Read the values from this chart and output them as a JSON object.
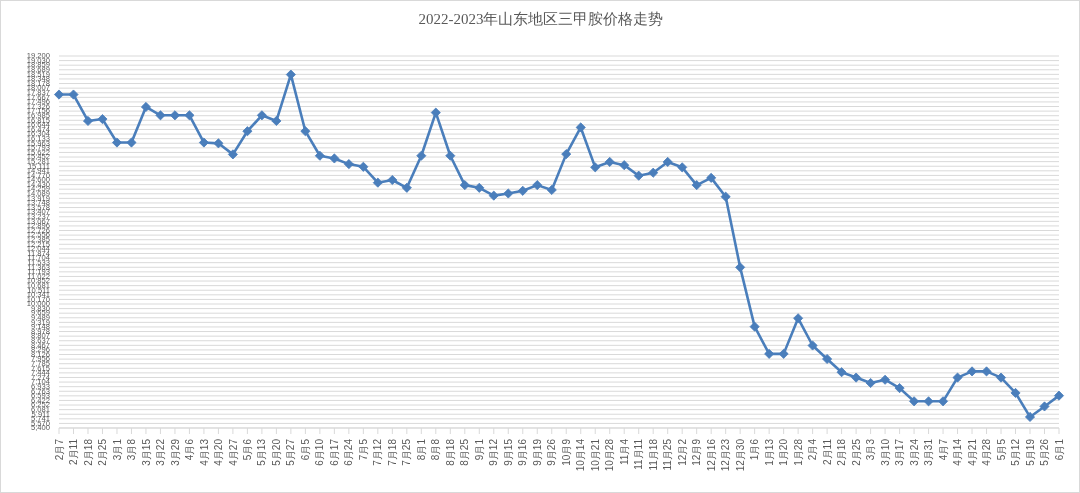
{
  "chart_data": {
    "type": "line",
    "title": "2022-2023年山东地区三甲胺价格走势",
    "categories": [
      "2月7",
      "2月11",
      "2月18",
      "2月25",
      "3月1",
      "3月8",
      "3月15",
      "3月22",
      "3月29",
      "4月6",
      "4月13",
      "4月20",
      "4月27",
      "5月6",
      "5月13",
      "5月20",
      "5月27",
      "6月5",
      "6月10",
      "6月17",
      "6月24",
      "7月5",
      "7月12",
      "7月18",
      "7月25",
      "8月1",
      "8月8",
      "8月18",
      "8月25",
      "9月1",
      "9月12",
      "9月15",
      "9月16",
      "9月19",
      "9月26",
      "10月9",
      "10月14",
      "10月21",
      "10月28",
      "11月4",
      "11月11",
      "11月18",
      "11月25",
      "12月2",
      "12月9",
      "12月16",
      "12月23",
      "12月30",
      "1月6",
      "1月13",
      "1月20",
      "1月28",
      "2月4",
      "2月11",
      "2月18",
      "2月25",
      "3月3",
      "3月10",
      "3月17",
      "3月24",
      "3月31",
      "4月7",
      "4月14",
      "4月21",
      "4月28",
      "5月5",
      "5月12",
      "5月19",
      "5月26",
      "6月1"
    ],
    "values": [
      17770,
      17770,
      16790,
      16860,
      15990,
      15990,
      17310,
      17000,
      17000,
      17000,
      15990,
      15960,
      15550,
      16410,
      17000,
      16790,
      18510,
      16410,
      15500,
      15400,
      15190,
      15090,
      14500,
      14600,
      14310,
      15500,
      17100,
      15500,
      14410,
      14310,
      14020,
      14100,
      14200,
      14410,
      14230,
      15560,
      16550,
      15070,
      15270,
      15150,
      14760,
      14870,
      15270,
      15070,
      14410,
      14680,
      13980,
      11360,
      9160,
      8150,
      8150,
      9470,
      8460,
      7960,
      7470,
      7270,
      7070,
      7190,
      6880,
      6390,
      6390,
      6390,
      7270,
      7500,
      7500,
      7270,
      6700,
      5810,
      6200,
      6600
    ],
    "color": "#4a7ebb",
    "marker": "diamond",
    "line_style": "solid",
    "grid": "y",
    "ylim": [
      5400,
      19200
    ],
    "yticks": [
      {
        "value": 5400,
        "label": "5,400"
      },
      {
        "value": 5570.37,
        "label": "5,570"
      },
      {
        "value": 5740.74,
        "label": "5,741"
      },
      {
        "value": 5911.11,
        "label": "5,911"
      },
      {
        "value": 6081.48,
        "label": "6,081"
      },
      {
        "value": 6251.85,
        "label": "6,252"
      },
      {
        "value": 6422.22,
        "label": "6,422"
      },
      {
        "value": 6592.59,
        "label": "6,593"
      },
      {
        "value": 6762.96,
        "label": "6,763"
      },
      {
        "value": 6933.33,
        "label": "6,933"
      },
      {
        "value": 7103.7,
        "label": "7,104"
      },
      {
        "value": 7274.07,
        "label": "7,274"
      },
      {
        "value": 7444.44,
        "label": "7,444"
      },
      {
        "value": 7614.81,
        "label": "7,615"
      },
      {
        "value": 7785.19,
        "label": "7,785"
      },
      {
        "value": 7955.56,
        "label": "7,956"
      },
      {
        "value": 8125.93,
        "label": "8,126"
      },
      {
        "value": 8296.3,
        "label": "8,296"
      },
      {
        "value": 8466.67,
        "label": "8,467"
      },
      {
        "value": 8637.04,
        "label": "8,637"
      },
      {
        "value": 8807.41,
        "label": "8,807"
      },
      {
        "value": 8977.78,
        "label": "8,978"
      },
      {
        "value": 9148.15,
        "label": "9,148"
      },
      {
        "value": 9318.52,
        "label": "9,319"
      },
      {
        "value": 9488.89,
        "label": "9,489"
      },
      {
        "value": 9659.26,
        "label": "9,659"
      },
      {
        "value": 9829.63,
        "label": "9,830"
      },
      {
        "value": 10000,
        "label": "10,000"
      },
      {
        "value": 10170.37,
        "label": "10,170"
      },
      {
        "value": 10340.74,
        "label": "10,341"
      },
      {
        "value": 10511.11,
        "label": "10,511"
      },
      {
        "value": 10681.48,
        "label": "10,681"
      },
      {
        "value": 10851.85,
        "label": "10,852"
      },
      {
        "value": 11022.22,
        "label": "11,022"
      },
      {
        "value": 11192.59,
        "label": "11,193"
      },
      {
        "value": 11362.96,
        "label": "11,363"
      },
      {
        "value": 11533.33,
        "label": "11,533"
      },
      {
        "value": 11703.7,
        "label": "11,704"
      },
      {
        "value": 11874.07,
        "label": "11,874"
      },
      {
        "value": 12044.44,
        "label": "12,044"
      },
      {
        "value": 12214.81,
        "label": "12,215"
      },
      {
        "value": 12385.19,
        "label": "12,385"
      },
      {
        "value": 12555.56,
        "label": "12,556"
      },
      {
        "value": 12725.93,
        "label": "12,726"
      },
      {
        "value": 12896.3,
        "label": "12,896"
      },
      {
        "value": 13066.67,
        "label": "13,067"
      },
      {
        "value": 13237.04,
        "label": "13,237"
      },
      {
        "value": 13407.41,
        "label": "13,407"
      },
      {
        "value": 13577.78,
        "label": "13,578"
      },
      {
        "value": 13748.15,
        "label": "13,748"
      },
      {
        "value": 13918.52,
        "label": "13,919"
      },
      {
        "value": 14088.89,
        "label": "14,089"
      },
      {
        "value": 14259.26,
        "label": "14,259"
      },
      {
        "value": 14429.63,
        "label": "14,430"
      },
      {
        "value": 14600,
        "label": "14,600"
      },
      {
        "value": 14770.37,
        "label": "14,770"
      },
      {
        "value": 14940.74,
        "label": "14,941"
      },
      {
        "value": 15111.11,
        "label": "15,111"
      },
      {
        "value": 15281.48,
        "label": "15,281"
      },
      {
        "value": 15451.85,
        "label": "15,452"
      },
      {
        "value": 15622.22,
        "label": "15,622"
      },
      {
        "value": 15792.59,
        "label": "15,793"
      },
      {
        "value": 15962.96,
        "label": "15,963"
      },
      {
        "value": 16133.33,
        "label": "16,133"
      },
      {
        "value": 16303.7,
        "label": "16,304"
      },
      {
        "value": 16474.07,
        "label": "16,474"
      },
      {
        "value": 16644.44,
        "label": "16,644"
      },
      {
        "value": 16814.81,
        "label": "16,815"
      },
      {
        "value": 16985.19,
        "label": "16,985"
      },
      {
        "value": 17155.56,
        "label": "17,156"
      },
      {
        "value": 17325.93,
        "label": "17,326"
      },
      {
        "value": 17496.3,
        "label": "17,496"
      },
      {
        "value": 17666.67,
        "label": "17,667"
      },
      {
        "value": 17837.04,
        "label": "17,837"
      },
      {
        "value": 18007.41,
        "label": "18,007"
      },
      {
        "value": 18177.78,
        "label": "18,178"
      },
      {
        "value": 18348.15,
        "label": "18,348"
      },
      {
        "value": 18518.52,
        "label": "18,519"
      },
      {
        "value": 18688.89,
        "label": "18,689"
      },
      {
        "value": 18859.26,
        "label": "18,859"
      },
      {
        "value": 19029.63,
        "label": "19,030"
      },
      {
        "value": 19200,
        "label": "19,200"
      }
    ]
  }
}
